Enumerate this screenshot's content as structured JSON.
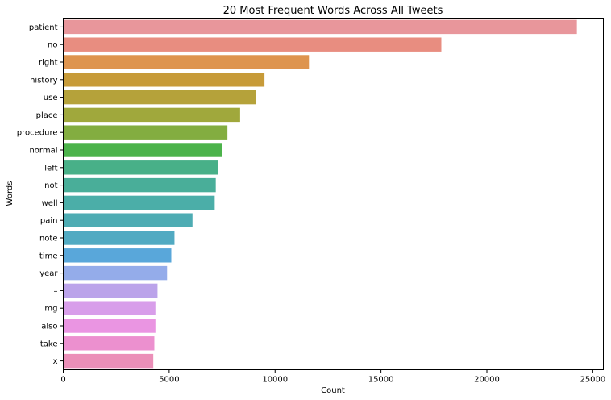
{
  "chart_data": {
    "type": "bar",
    "orientation": "horizontal",
    "title": "20 Most Frequent Words Across All Tweets",
    "xlabel": "Count",
    "ylabel": "Words",
    "xlim": [
      0,
      25500
    ],
    "xticks": [
      0,
      5000,
      10000,
      15000,
      20000,
      25000
    ],
    "xtick_labels": [
      "0",
      "5000",
      "10000",
      "15000",
      "20000",
      "25000"
    ],
    "grid": false,
    "categories": [
      "patient",
      "no",
      "right",
      "history",
      "use",
      "place",
      "procedure",
      "normal",
      "left",
      "not",
      "well",
      "pain",
      "note",
      "time",
      "year",
      "–",
      "mg",
      "also",
      "take",
      "x"
    ],
    "values": [
      24250,
      17850,
      11600,
      9500,
      9100,
      8350,
      7750,
      7500,
      7300,
      7200,
      7150,
      6100,
      5250,
      5100,
      4900,
      4450,
      4350,
      4350,
      4300,
      4250
    ],
    "colors": [
      "#e8969b",
      "#e88d80",
      "#de944e",
      "#c79b39",
      "#b5a23a",
      "#a0a83c",
      "#83ad40",
      "#4cb34b",
      "#48b088",
      "#49ae99",
      "#4baea8",
      "#4eacb3",
      "#51aac2",
      "#59a7da",
      "#94acea",
      "#bba3ea",
      "#d89eea",
      "#ea95e2",
      "#ec90cf",
      "#eb8fb8"
    ]
  }
}
